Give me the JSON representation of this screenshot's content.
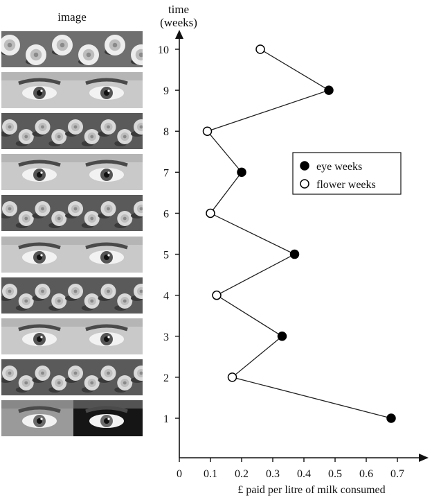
{
  "chart_data": {
    "type": "scatter",
    "image_column_label": "image",
    "xlabel": "£ paid per litre of milk consumed",
    "ylabel": "time (weeks)",
    "ylabel_lines": [
      "time",
      "(weeks)"
    ],
    "xlim": [
      0,
      0.7
    ],
    "ylim": [
      1,
      10
    ],
    "x_ticks": [
      "0",
      "0.1",
      "0.2",
      "0.3",
      "0.4",
      "0.5",
      "0.6",
      "0.7"
    ],
    "y_ticks": [
      "1",
      "2",
      "3",
      "4",
      "5",
      "6",
      "7",
      "8",
      "9",
      "10"
    ],
    "grid": false,
    "connect_points": true,
    "legend": {
      "placement": "right",
      "entries": [
        {
          "name": "eye weeks",
          "marker": "filled"
        },
        {
          "name": "flower weeks",
          "marker": "open"
        }
      ]
    },
    "points": [
      {
        "week": 1,
        "value": 0.68,
        "series": "eye weeks",
        "image": "eyes"
      },
      {
        "week": 2,
        "value": 0.17,
        "series": "flower weeks",
        "image": "flowers"
      },
      {
        "week": 3,
        "value": 0.33,
        "series": "eye weeks",
        "image": "eyes"
      },
      {
        "week": 4,
        "value": 0.12,
        "series": "flower weeks",
        "image": "flowers"
      },
      {
        "week": 5,
        "value": 0.37,
        "series": "eye weeks",
        "image": "eyes"
      },
      {
        "week": 6,
        "value": 0.1,
        "series": "flower weeks",
        "image": "flowers"
      },
      {
        "week": 7,
        "value": 0.2,
        "series": "eye weeks",
        "image": "eyes"
      },
      {
        "week": 8,
        "value": 0.09,
        "series": "flower weeks",
        "image": "flowers"
      },
      {
        "week": 9,
        "value": 0.48,
        "series": "eye weeks",
        "image": "eyes"
      },
      {
        "week": 10,
        "value": 0.26,
        "series": "flower weeks",
        "image": "flowers"
      }
    ]
  }
}
